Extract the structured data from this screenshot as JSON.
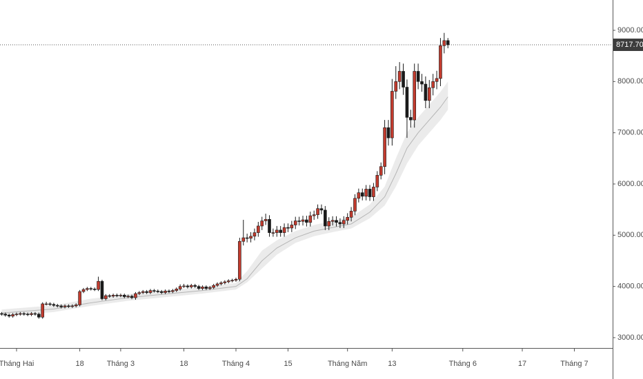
{
  "chart_data": {
    "type": "candlestick",
    "up_color": "#c23b2e",
    "down_color": "#1a1a1a",
    "band_color": "#e6e6e6",
    "line_color": "#b5b5b5",
    "xlim": [
      -4.45,
      160.3
    ],
    "ylim": [
      2798,
      9592
    ],
    "xticks": [
      {
        "value": 0,
        "label": "Tháng Hai"
      },
      {
        "value": 17,
        "label": "18"
      },
      {
        "value": 28,
        "label": "Tháng 3"
      },
      {
        "value": 45,
        "label": "18"
      },
      {
        "value": 59,
        "label": "Tháng 4"
      },
      {
        "value": 73,
        "label": "15"
      },
      {
        "value": 89,
        "label": "Tháng Năm"
      },
      {
        "value": 101,
        "label": "13"
      },
      {
        "value": 120,
        "label": "Tháng 6"
      },
      {
        "value": 136,
        "label": "17"
      },
      {
        "value": 150,
        "label": "Tháng 7"
      }
    ],
    "yticks": [
      {
        "value": 3000,
        "label": "3000.00"
      },
      {
        "value": 4000,
        "label": "4000.00"
      },
      {
        "value": 5000,
        "label": "5000.00"
      },
      {
        "value": 6000,
        "label": "6000.00"
      },
      {
        "value": 7000,
        "label": "7000.00"
      },
      {
        "value": 8000,
        "label": "8000.00"
      },
      {
        "value": 9000,
        "label": "9000.00"
      }
    ],
    "price_line": {
      "value": 8717.7,
      "label": "8717.70"
    },
    "x": [
      -4,
      -3,
      -2,
      -1,
      0,
      1,
      2,
      3,
      4,
      5,
      6,
      7,
      8,
      9,
      10,
      11,
      12,
      13,
      14,
      15,
      16,
      17,
      18,
      19,
      20,
      21,
      22,
      23,
      24,
      25,
      26,
      27,
      28,
      29,
      30,
      31,
      32,
      33,
      34,
      35,
      36,
      37,
      38,
      39,
      40,
      41,
      42,
      43,
      44,
      45,
      46,
      47,
      48,
      49,
      50,
      51,
      52,
      53,
      54,
      55,
      56,
      57,
      58,
      59,
      60,
      61,
      62,
      63,
      64,
      65,
      66,
      67,
      68,
      69,
      70,
      71,
      72,
      73,
      74,
      75,
      76,
      77,
      78,
      79,
      80,
      81,
      82,
      83,
      84,
      85,
      86,
      87,
      88,
      89,
      90,
      91,
      92,
      93,
      94,
      95,
      96,
      97,
      98,
      99,
      100,
      101,
      102,
      103,
      104,
      105,
      106,
      107,
      108,
      109,
      110,
      111,
      112,
      113,
      114,
      115,
      116
    ],
    "open": [
      3470,
      3460,
      3440,
      3420,
      3450,
      3460,
      3470,
      3460,
      3450,
      3470,
      3460,
      3400,
      3660,
      3660,
      3650,
      3630,
      3620,
      3600,
      3620,
      3610,
      3620,
      3640,
      3900,
      3940,
      3960,
      3950,
      3940,
      4100,
      3760,
      3820,
      3810,
      3830,
      3820,
      3830,
      3800,
      3810,
      3780,
      3860,
      3880,
      3900,
      3880,
      3920,
      3910,
      3900,
      3880,
      3910,
      3900,
      3920,
      3950,
      4000,
      4010,
      3990,
      4020,
      4000,
      3960,
      3990,
      3960,
      3980,
      4020,
      4050,
      4070,
      4090,
      4110,
      4120,
      4140,
      4880,
      4950,
      4940,
      4980,
      5050,
      5180,
      5280,
      5310,
      5050,
      5050,
      5100,
      5050,
      5150,
      5140,
      5200,
      5280,
      5270,
      5300,
      5250,
      5380,
      5400,
      5520,
      5490,
      5180,
      5270,
      5290,
      5250,
      5220,
      5290,
      5350,
      5470,
      5720,
      5830,
      5760,
      5900,
      5750,
      5940,
      6170,
      6340,
      7100,
      6900,
      7810,
      8000,
      8200,
      7890,
      7300,
      7250,
      8200,
      8000,
      7950,
      7630,
      7880,
      8000,
      8060,
      8700,
      8800
    ],
    "high": [
      3500,
      3490,
      3470,
      3480,
      3490,
      3500,
      3500,
      3490,
      3500,
      3500,
      3490,
      3690,
      3700,
      3690,
      3680,
      3660,
      3650,
      3650,
      3650,
      3650,
      3670,
      3930,
      3970,
      3990,
      3990,
      3980,
      4190,
      4130,
      3850,
      3850,
      3860,
      3860,
      3860,
      3860,
      3840,
      3840,
      3890,
      3910,
      3930,
      3930,
      3950,
      3950,
      3940,
      3930,
      3940,
      3940,
      3950,
      3980,
      4040,
      4050,
      4040,
      4050,
      4050,
      4030,
      4020,
      4020,
      4010,
      4050,
      4080,
      4100,
      4120,
      4140,
      4150,
      4170,
      4950,
      5300,
      5030,
      5060,
      5130,
      5260,
      5360,
      5420,
      5390,
      5130,
      5180,
      5180,
      5230,
      5230,
      5280,
      5360,
      5360,
      5380,
      5380,
      5460,
      5480,
      5600,
      5600,
      5570,
      5350,
      5370,
      5370,
      5330,
      5370,
      5430,
      5550,
      5800,
      5910,
      5910,
      5980,
      5980,
      6020,
      6250,
      6420,
      7250,
      7250,
      8050,
      8300,
      8380,
      8350,
      8040,
      7450,
      8350,
      8350,
      8150,
      8100,
      8030,
      8150,
      8210,
      8850,
      8950,
      8850
    ],
    "low": [
      3430,
      3410,
      3390,
      3390,
      3420,
      3430,
      3430,
      3420,
      3420,
      3430,
      3370,
      3370,
      3630,
      3620,
      3600,
      3590,
      3570,
      3570,
      3580,
      3580,
      3590,
      3610,
      3870,
      3910,
      3920,
      3910,
      3910,
      3730,
      3730,
      3780,
      3780,
      3790,
      3790,
      3770,
      3770,
      3750,
      3740,
      3830,
      3850,
      3850,
      3850,
      3880,
      3870,
      3850,
      3850,
      3870,
      3870,
      3890,
      3920,
      3970,
      3960,
      3960,
      3970,
      3930,
      3930,
      3930,
      3930,
      3950,
      3990,
      4020,
      4040,
      4060,
      4080,
      4090,
      4100,
      4800,
      4860,
      4860,
      4900,
      4970,
      5100,
      5200,
      4970,
      4970,
      4970,
      4970,
      4970,
      5060,
      5060,
      5120,
      5190,
      5190,
      5170,
      5170,
      5300,
      5320,
      5410,
      5100,
      5100,
      5190,
      5170,
      5140,
      5140,
      5210,
      5270,
      5390,
      5640,
      5680,
      5680,
      5670,
      5670,
      5860,
      6090,
      6190,
      6750,
      6750,
      7660,
      7850,
      7740,
      6900,
      7100,
      7100,
      7850,
      7800,
      7480,
      7480,
      7730,
      7850,
      7910,
      8550,
      8650
    ],
    "close": [
      3460,
      3440,
      3420,
      3450,
      3460,
      3470,
      3460,
      3450,
      3470,
      3460,
      3400,
      3660,
      3660,
      3650,
      3630,
      3620,
      3600,
      3620,
      3610,
      3620,
      3640,
      3900,
      3940,
      3960,
      3950,
      3940,
      4100,
      3760,
      3820,
      3810,
      3830,
      3820,
      3830,
      3800,
      3810,
      3780,
      3860,
      3880,
      3900,
      3880,
      3920,
      3910,
      3900,
      3880,
      3910,
      3900,
      3920,
      3950,
      4000,
      4010,
      3990,
      4020,
      4000,
      3960,
      3990,
      3960,
      3980,
      4020,
      4050,
      4070,
      4090,
      4110,
      4120,
      4140,
      4880,
      4950,
      4940,
      4980,
      5050,
      5180,
      5280,
      5310,
      5050,
      5050,
      5100,
      5050,
      5150,
      5140,
      5200,
      5280,
      5270,
      5300,
      5250,
      5380,
      5400,
      5520,
      5490,
      5180,
      5270,
      5290,
      5250,
      5220,
      5290,
      5350,
      5470,
      5720,
      5830,
      5760,
      5900,
      5750,
      5940,
      6170,
      6340,
      7100,
      6900,
      7810,
      8000,
      8200,
      7890,
      7300,
      7250,
      8200,
      8000,
      7950,
      7630,
      7880,
      8000,
      8060,
      8700,
      8800,
      8718
    ],
    "band": {
      "x": [
        -4,
        10,
        20,
        30,
        40,
        50,
        59,
        62,
        66,
        70,
        75,
        80,
        85,
        90,
        95,
        99,
        102,
        105,
        108,
        111,
        114,
        116
      ],
      "upper": [
        3550,
        3630,
        3760,
        3850,
        3920,
        3990,
        4070,
        4300,
        4700,
        4900,
        5080,
        5200,
        5280,
        5350,
        5600,
        5950,
        6500,
        7000,
        7300,
        7550,
        7800,
        8000
      ],
      "middle": [
        3480,
        3560,
        3680,
        3780,
        3850,
        3920,
        4000,
        4150,
        4500,
        4750,
        4950,
        5080,
        5150,
        5220,
        5450,
        5750,
        6200,
        6700,
        7000,
        7250,
        7500,
        7700
      ],
      "lower": [
        3420,
        3500,
        3620,
        3720,
        3790,
        3860,
        3940,
        4080,
        4350,
        4620,
        4850,
        4980,
        5060,
        5130,
        5330,
        5580,
        5950,
        6400,
        6750,
        7000,
        7250,
        7450
      ]
    }
  }
}
